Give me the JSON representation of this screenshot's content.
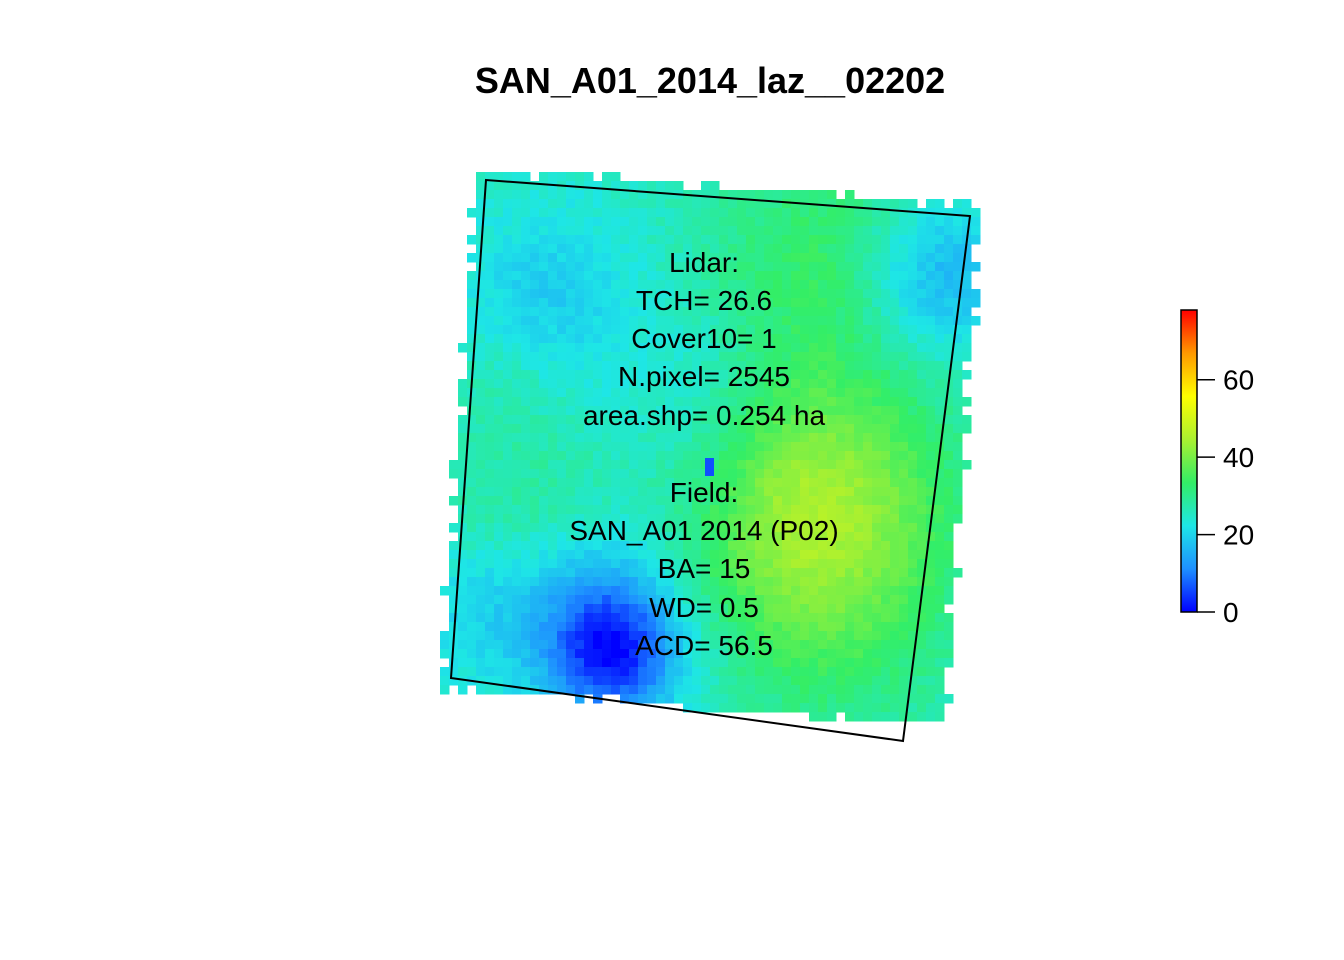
{
  "chart_data": {
    "type": "heatmap",
    "title": "SAN_A01_2014_laz__02202",
    "colorbar": {
      "range": [
        0,
        78
      ],
      "ticks": [
        0,
        20,
        40,
        60
      ],
      "colors": [
        "#0000ff",
        "#1e90ff",
        "#1ee6e6",
        "#33ee66",
        "#aaf030",
        "#ffff00",
        "#ff9900",
        "#ff0000"
      ]
    },
    "lidar": {
      "header": "Lidar:",
      "lines": [
        "TCH= 26.6",
        "Cover10= 1",
        "N.pixel= 2545",
        "area.shp= 0.254 ha"
      ]
    },
    "field": {
      "header": "Field:",
      "lines": [
        "SAN_A01 2014 (P02)",
        "BA= 15",
        "WD= 0.5",
        "ACD= 56.5"
      ]
    },
    "canopy_height_patches": [
      {
        "u": 0.72,
        "v": 0.62,
        "height": 45,
        "radius": 0.2
      },
      {
        "u": 0.7,
        "v": 0.1,
        "height": 33,
        "radius": 0.17
      },
      {
        "u": 0.12,
        "v": 0.66,
        "height": 29,
        "radius": 0.13
      },
      {
        "u": 0.06,
        "v": 0.4,
        "height": 27,
        "radius": 0.08
      },
      {
        "u": 0.33,
        "v": 0.93,
        "height": 8,
        "radius": 0.09
      },
      {
        "u": 0.31,
        "v": 0.85,
        "height": 14,
        "radius": 0.13
      },
      {
        "u": 0.94,
        "v": 0.13,
        "height": 14,
        "radius": 0.11
      },
      {
        "u": 0.15,
        "v": 0.22,
        "height": 19,
        "radius": 0.12
      },
      {
        "u": 0.46,
        "v": 0.38,
        "height": 21,
        "radius": 0.12
      },
      {
        "u": 0.8,
        "v": 0.92,
        "height": 28,
        "radius": 0.15
      },
      {
        "u": 0.05,
        "v": 0.85,
        "height": 20,
        "radius": 0.1
      },
      {
        "u": 0.5,
        "v": 0.57,
        "height": 22,
        "radius": 0.1
      }
    ],
    "base_height": 25
  }
}
